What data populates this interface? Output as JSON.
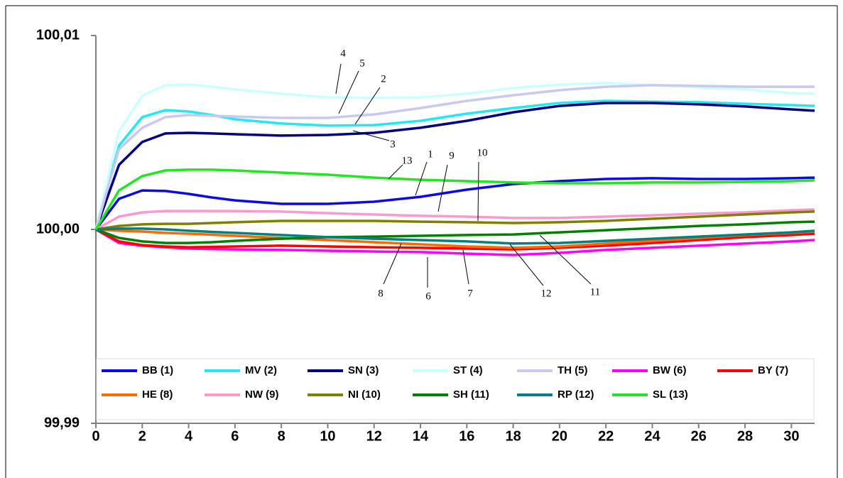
{
  "chart_data": {
    "type": "line",
    "x": [
      0,
      1,
      2,
      3,
      4,
      5,
      6,
      8,
      10,
      12,
      14,
      16,
      18,
      20,
      22,
      24,
      26,
      28,
      30,
      31
    ],
    "xlim": [
      0,
      31
    ],
    "xticks": [
      0,
      2,
      4,
      6,
      8,
      10,
      12,
      14,
      16,
      18,
      20,
      22,
      24,
      26,
      28,
      30
    ],
    "ylim": [
      99.99,
      100.01
    ],
    "yticks": [
      {
        "value": 99.99,
        "label": "99,99"
      },
      {
        "value": 100.0,
        "label": "100,00"
      },
      {
        "value": 100.01,
        "label": "100,01"
      }
    ],
    "annotations": [
      "4",
      "5",
      "2",
      "3",
      "13",
      "1",
      "9",
      "10",
      "8",
      "6",
      "7",
      "12",
      "11"
    ],
    "series": [
      {
        "name": "BB (1)",
        "color": "#0a0ae6",
        "values": [
          100,
          100.00158,
          100.00201,
          100.00198,
          100.00183,
          100.00165,
          100.0015,
          100.00132,
          100.00132,
          100.00143,
          100.00168,
          100.00205,
          100.00234,
          100.00249,
          100.0026,
          100.00264,
          100.0026,
          100.0026,
          100.00264,
          100.00267
        ]
      },
      {
        "name": "MV (2)",
        "color": "#22e8f2",
        "values": [
          100,
          100.00432,
          100.00579,
          100.00615,
          100.00608,
          100.0059,
          100.00568,
          100.00546,
          100.00535,
          100.00538,
          100.0056,
          100.00597,
          100.00626,
          100.00652,
          100.00663,
          100.00659,
          100.00656,
          100.00648,
          100.00641,
          100.00637
        ]
      },
      {
        "name": "SN (3)",
        "color": "#000080",
        "values": [
          100,
          100.00333,
          100.00451,
          100.00495,
          100.00498,
          100.00495,
          100.00491,
          100.00484,
          100.00487,
          100.00498,
          100.00524,
          100.0056,
          100.00604,
          100.00637,
          100.00652,
          100.00652,
          100.00645,
          100.00634,
          100.00619,
          100.00612
        ]
      },
      {
        "name": "ST (4)",
        "color": "#ccffff",
        "values": [
          100,
          100.00505,
          100.00689,
          100.00744,
          100.00747,
          100.00736,
          100.00722,
          100.007,
          100.00681,
          100.00678,
          100.00681,
          100.007,
          100.00729,
          100.00747,
          100.00755,
          100.00744,
          100.00733,
          100.00722,
          100.00703,
          100.007
        ]
      },
      {
        "name": "TH (5)",
        "color": "#c8c8f0",
        "values": [
          100,
          100.00414,
          100.00524,
          100.00579,
          100.0059,
          100.00586,
          100.00582,
          100.00575,
          100.00575,
          100.00593,
          100.00626,
          100.00663,
          100.00692,
          100.00718,
          100.00736,
          100.00744,
          100.0074,
          100.00736,
          100.00736,
          100.00736
        ]
      },
      {
        "name": "BW (6)",
        "color": "#ff00ff",
        "values": [
          100,
          99.9993,
          99.99916,
          99.99908,
          99.99901,
          99.99899,
          99.99897,
          99.99894,
          99.9989,
          99.99886,
          99.99883,
          99.99875,
          99.99868,
          99.99879,
          99.99894,
          99.99905,
          99.99916,
          99.99927,
          99.99938,
          99.99945
        ]
      },
      {
        "name": "BY (7)",
        "color": "#ff0000",
        "values": [
          100,
          99.99938,
          99.99919,
          99.99912,
          99.99908,
          99.9991,
          99.99912,
          99.99916,
          99.99912,
          99.99908,
          99.99905,
          99.99901,
          99.99897,
          99.99905,
          99.99916,
          99.9993,
          99.99945,
          99.9996,
          99.99971,
          99.99978
        ]
      },
      {
        "name": "HE (8)",
        "color": "#ff6a00",
        "values": [
          100,
          99.99993,
          99.99989,
          99.99982,
          99.99978,
          99.99973,
          99.99967,
          99.99956,
          99.99945,
          99.99934,
          99.99923,
          99.99912,
          99.99905,
          99.99912,
          99.99927,
          99.99941,
          99.99956,
          99.99971,
          99.99982,
          99.99989
        ]
      },
      {
        "name": "NW (9)",
        "color": "#ff99cc",
        "values": [
          100,
          100.00066,
          100.00088,
          100.00095,
          100.00095,
          100.00095,
          100.00095,
          100.00092,
          100.00084,
          100.00077,
          100.0007,
          100.00066,
          100.00059,
          100.00059,
          100.00066,
          100.00073,
          100.00081,
          100.00088,
          100.00099,
          100.00103
        ]
      },
      {
        "name": "NI (10)",
        "color": "#808000",
        "values": [
          100,
          100.00018,
          100.00026,
          100.00029,
          100.00029,
          100.00033,
          100.00037,
          100.00044,
          100.00044,
          100.00044,
          100.0004,
          100.00037,
          100.00033,
          100.00037,
          100.00044,
          100.00055,
          100.00066,
          100.00077,
          100.00088,
          100.00092
        ]
      },
      {
        "name": "SH (11)",
        "color": "#008000",
        "values": [
          100,
          99.99956,
          99.99938,
          99.9993,
          99.9993,
          99.99934,
          99.99941,
          99.99952,
          99.9996,
          99.99963,
          99.99967,
          99.99971,
          99.99974,
          99.99985,
          99.99996,
          100.00007,
          100.00018,
          100.00026,
          100.00037,
          100.0004
        ]
      },
      {
        "name": "RP (12)",
        "color": "#008080",
        "values": [
          100,
          100.00004,
          100.00004,
          100,
          99.99993,
          99.99987,
          99.99982,
          99.99971,
          99.9996,
          99.99952,
          99.99945,
          99.99938,
          99.99927,
          99.9993,
          99.99941,
          99.99952,
          99.99963,
          99.99974,
          99.99985,
          99.99993
        ]
      },
      {
        "name": "SL (13)",
        "color": "#22e622",
        "values": [
          100,
          100.00201,
          100.00275,
          100.00304,
          100.00308,
          100.00308,
          100.00304,
          100.00293,
          100.00282,
          100.00267,
          100.00256,
          100.00249,
          100.00242,
          100.00238,
          100.00238,
          100.00242,
          100.00242,
          100.00245,
          100.00249,
          100.00253
        ]
      }
    ]
  }
}
